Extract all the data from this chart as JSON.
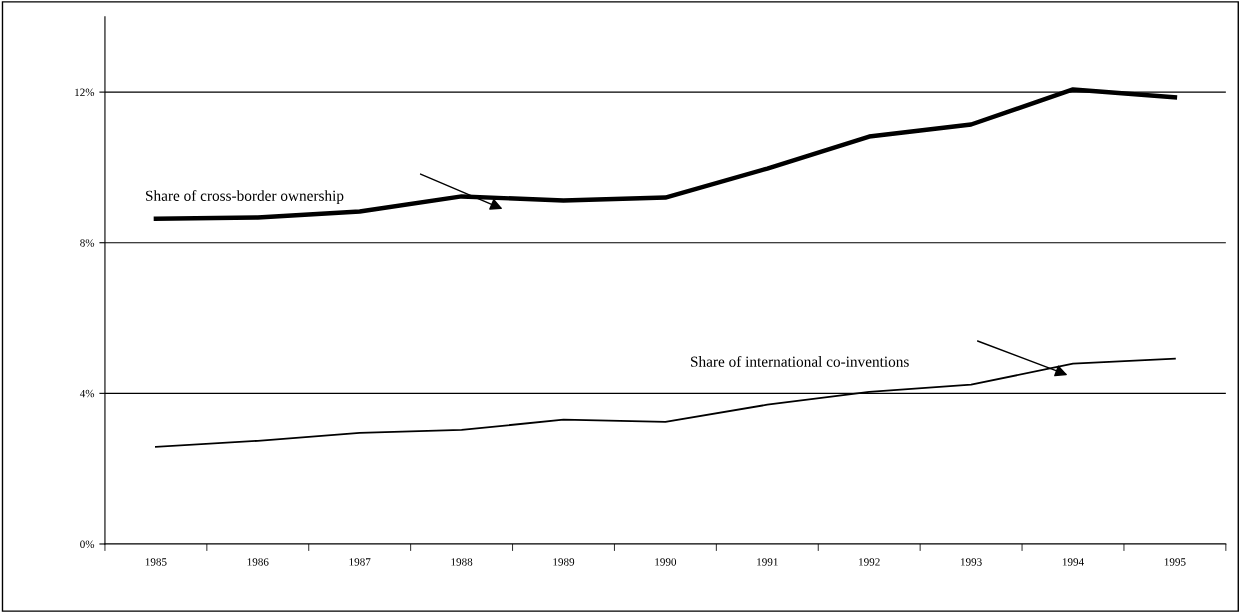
{
  "chart_data": {
    "type": "line",
    "categories": [
      "1985",
      "1986",
      "1987",
      "1988",
      "1989",
      "1990",
      "1991",
      "1992",
      "1993",
      "1994",
      "1995"
    ],
    "series": [
      {
        "color": "#000000",
        "values": [
          8.64,
          8.67,
          8.83,
          9.23,
          9.12,
          9.2,
          9.97,
          10.82,
          11.14,
          12.07,
          11.86
        ]
      },
      {
        "color": "#000000",
        "values": [
          2.58,
          2.74,
          2.95,
          3.03,
          3.3,
          3.24,
          3.7,
          4.04,
          4.23,
          4.79,
          4.92
        ]
      }
    ],
    "ylim": [
      0,
      14
    ],
    "yticks": [
      {
        "value": 0,
        "label": "0%"
      },
      {
        "value": 4,
        "label": "4%"
      },
      {
        "value": 8,
        "label": "8%"
      },
      {
        "value": 12,
        "label": "12%"
      }
    ],
    "grid": "y",
    "marker": "none",
    "line_style": "solid",
    "annotations": [
      "Share of cross-border ownership",
      "Share of international co-inventions"
    ]
  }
}
